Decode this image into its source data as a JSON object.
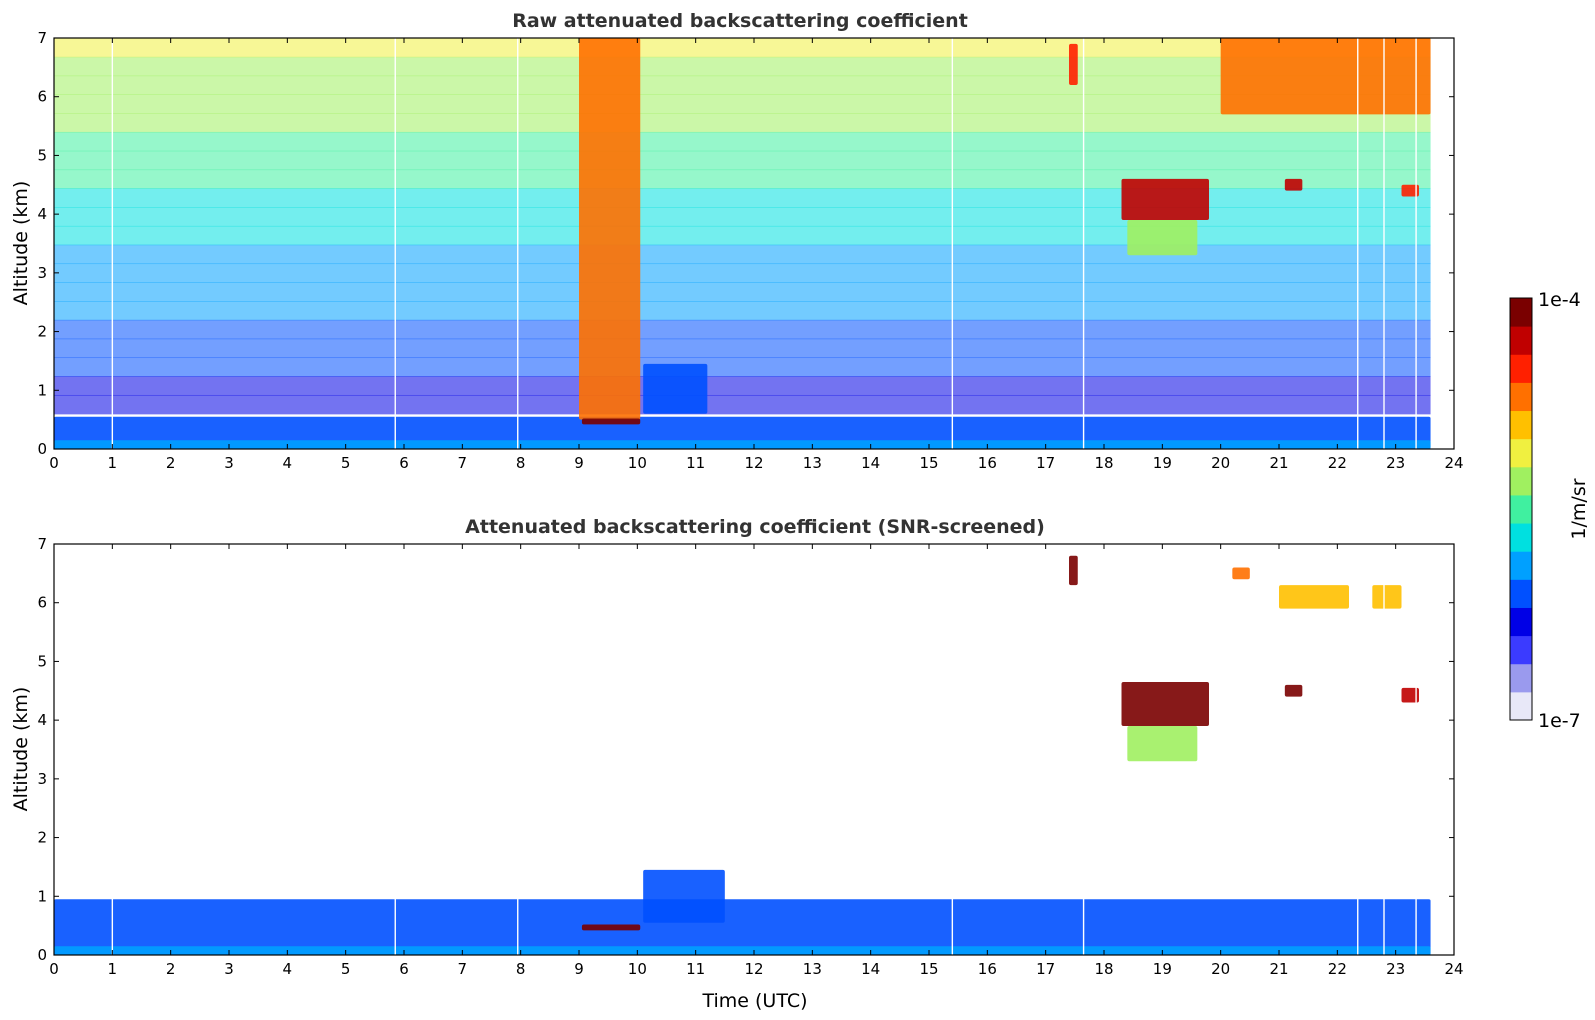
{
  "chart_data": [
    {
      "type": "heatmap",
      "title": "Raw attenuated backscattering coefficient",
      "xlabel": "",
      "ylabel": "Altitude (km)",
      "xlim": [
        0,
        24
      ],
      "ylim": [
        0,
        7
      ],
      "x_ticks": [
        "0",
        "1",
        "2",
        "3",
        "4",
        "5",
        "6",
        "7",
        "8",
        "9",
        "10",
        "11",
        "12",
        "13",
        "14",
        "15",
        "16",
        "17",
        "18",
        "19",
        "20",
        "21",
        "22",
        "23",
        "24"
      ],
      "y_ticks": [
        "0",
        "1",
        "2",
        "3",
        "4",
        "5",
        "6",
        "7"
      ],
      "data_end_time": 23.6,
      "gap_times": [
        1.0,
        5.85,
        7.95,
        15.4,
        17.65,
        22.35,
        22.8,
        23.35
      ],
      "features": [
        {
          "name": "noisy background",
          "t_start": 0,
          "t_end": 23.6,
          "z_start": 0.6,
          "z_end": 7.0,
          "level": 0.5
        },
        {
          "name": "boundary layer",
          "t_start": 0,
          "t_end": 23.6,
          "z_start": 0.0,
          "z_end": 0.55,
          "level": 0.25
        },
        {
          "name": "surface layer",
          "t_start": 0,
          "t_end": 23.6,
          "z_start": 0.0,
          "z_end": 0.15,
          "level": 0.38
        },
        {
          "name": "attenuated column above low cloud",
          "t_start": 9.0,
          "t_end": 10.05,
          "z_start": 0.5,
          "z_end": 7.0,
          "level": 0.78
        },
        {
          "name": "low cloud",
          "t_start": 9.05,
          "t_end": 10.05,
          "z_start": 0.42,
          "z_end": 0.52,
          "level": 0.99
        },
        {
          "name": "residual aerosol layer",
          "t_start": 10.1,
          "t_end": 11.2,
          "z_start": 0.6,
          "z_end": 1.45,
          "level": 0.3
        },
        {
          "name": "mid-level cloud",
          "t_start": 18.3,
          "t_end": 19.8,
          "z_start": 3.9,
          "z_end": 4.6,
          "level": 0.92
        },
        {
          "name": "mid-level cloud virga",
          "t_start": 18.4,
          "t_end": 19.6,
          "z_start": 3.3,
          "z_end": 3.9,
          "level": 0.55
        },
        {
          "name": "cloud patch",
          "t_start": 21.1,
          "t_end": 21.4,
          "z_start": 4.4,
          "z_end": 4.6,
          "level": 0.9
        },
        {
          "name": "cloud patch",
          "t_start": 23.1,
          "t_end": 23.4,
          "z_start": 4.3,
          "z_end": 4.5,
          "level": 0.88
        },
        {
          "name": "upper cloud",
          "t_start": 20.0,
          "t_end": 23.6,
          "z_start": 5.7,
          "z_end": 7.0,
          "level": 0.78
        },
        {
          "name": "high cloud streak",
          "t_start": 17.4,
          "t_end": 17.55,
          "z_start": 6.2,
          "z_end": 6.9,
          "level": 0.85
        }
      ]
    },
    {
      "type": "heatmap",
      "title": "Attenuated backscattering coefficient (SNR-screened)",
      "xlabel": "Time (UTC)",
      "ylabel": "Altitude (km)",
      "xlim": [
        0,
        24
      ],
      "ylim": [
        0,
        7
      ],
      "x_ticks": [
        "0",
        "1",
        "2",
        "3",
        "4",
        "5",
        "6",
        "7",
        "8",
        "9",
        "10",
        "11",
        "12",
        "13",
        "14",
        "15",
        "16",
        "17",
        "18",
        "19",
        "20",
        "21",
        "22",
        "23",
        "24"
      ],
      "y_ticks": [
        "0",
        "1",
        "2",
        "3",
        "4",
        "5",
        "6",
        "7"
      ],
      "data_end_time": 23.6,
      "gap_times": [
        1.0,
        5.85,
        7.95,
        15.4,
        17.65,
        22.35,
        22.8,
        23.35
      ],
      "features": [
        {
          "name": "boundary layer",
          "t_start": 0,
          "t_end": 23.6,
          "z_start": 0.0,
          "z_end": 0.95,
          "level": 0.25
        },
        {
          "name": "surface layer",
          "t_start": 0,
          "t_end": 23.6,
          "z_start": 0.0,
          "z_end": 0.15,
          "level": 0.38
        },
        {
          "name": "low cloud",
          "t_start": 9.05,
          "t_end": 10.05,
          "z_start": 0.42,
          "z_end": 0.52,
          "level": 0.99
        },
        {
          "name": "residual aerosol layer",
          "t_start": 10.1,
          "t_end": 11.5,
          "z_start": 0.55,
          "z_end": 1.45,
          "level": 0.3
        },
        {
          "name": "mid-level cloud",
          "t_start": 18.3,
          "t_end": 19.8,
          "z_start": 3.9,
          "z_end": 4.65,
          "level": 1.0
        },
        {
          "name": "mid-level cloud virga",
          "t_start": 18.4,
          "t_end": 19.6,
          "z_start": 3.3,
          "z_end": 3.9,
          "level": 0.55
        },
        {
          "name": "cloud patch",
          "t_start": 21.1,
          "t_end": 21.4,
          "z_start": 4.4,
          "z_end": 4.6,
          "level": 1.0
        },
        {
          "name": "cloud patch",
          "t_start": 23.1,
          "t_end": 23.4,
          "z_start": 4.3,
          "z_end": 4.55,
          "level": 0.9
        },
        {
          "name": "upper cloud",
          "t_start": 21.0,
          "t_end": 22.2,
          "z_start": 5.9,
          "z_end": 6.3,
          "level": 0.72
        },
        {
          "name": "upper cloud",
          "t_start": 22.6,
          "t_end": 23.1,
          "z_start": 5.9,
          "z_end": 6.3,
          "level": 0.7
        },
        {
          "name": "upper cloud",
          "t_start": 20.2,
          "t_end": 20.5,
          "z_start": 6.4,
          "z_end": 6.6,
          "level": 0.8
        },
        {
          "name": "high cloud streak",
          "t_start": 17.4,
          "t_end": 17.55,
          "z_start": 6.3,
          "z_end": 6.8,
          "level": 1.0
        }
      ]
    }
  ],
  "colorbar": {
    "label": "1/m/sr",
    "max_label": "1e-4",
    "min_label": "1e-7",
    "scale": "log",
    "range": [
      1e-07,
      0.0001
    ],
    "colormap": [
      "#e8e8f8",
      "#9a9aee",
      "#3b3bff",
      "#0000e6",
      "#0050ff",
      "#00a0ff",
      "#00e0e0",
      "#40f0a0",
      "#a0f060",
      "#f0f040",
      "#ffc000",
      "#ff7000",
      "#ff2000",
      "#c00000",
      "#7a0000"
    ]
  }
}
